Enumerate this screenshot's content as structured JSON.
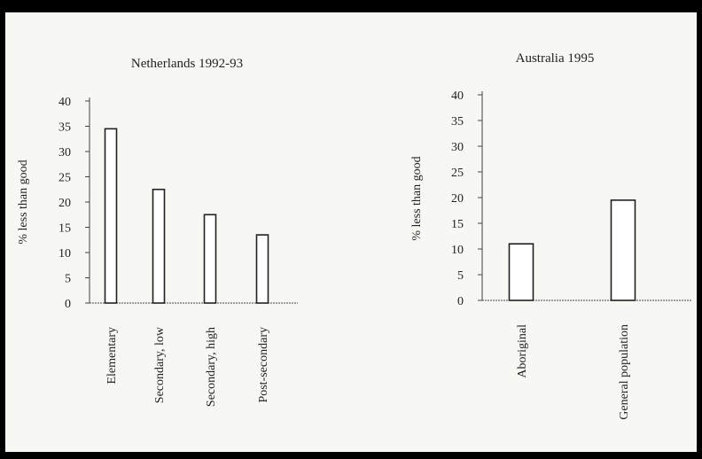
{
  "chart_data": [
    {
      "type": "bar",
      "title": "Netherlands 1992-93",
      "xlabel": "",
      "ylabel": "% less than good",
      "ylim": [
        0,
        40
      ],
      "yticks": [
        0,
        5,
        10,
        15,
        20,
        25,
        30,
        35,
        40
      ],
      "categories": [
        "Elementary",
        "Secondary, low",
        "Secondary, high",
        "Post-secondary"
      ],
      "values": [
        34.5,
        22.5,
        17.5,
        13.5
      ],
      "grid": false,
      "legend": "none"
    },
    {
      "type": "bar",
      "title": "Australia 1995",
      "xlabel": "",
      "ylabel": "% less than good",
      "ylim": [
        0,
        40
      ],
      "yticks": [
        0,
        5,
        10,
        15,
        20,
        25,
        30,
        35,
        40
      ],
      "categories": [
        "Aboriginal",
        "General population"
      ],
      "values": [
        11,
        19.5
      ],
      "grid": false,
      "legend": "none"
    }
  ],
  "colors": {
    "background": "#f7f7f4",
    "frame": "#000000",
    "bar_fill": "#ffffff",
    "bar_stroke": "#222222",
    "axis": "#444444"
  }
}
